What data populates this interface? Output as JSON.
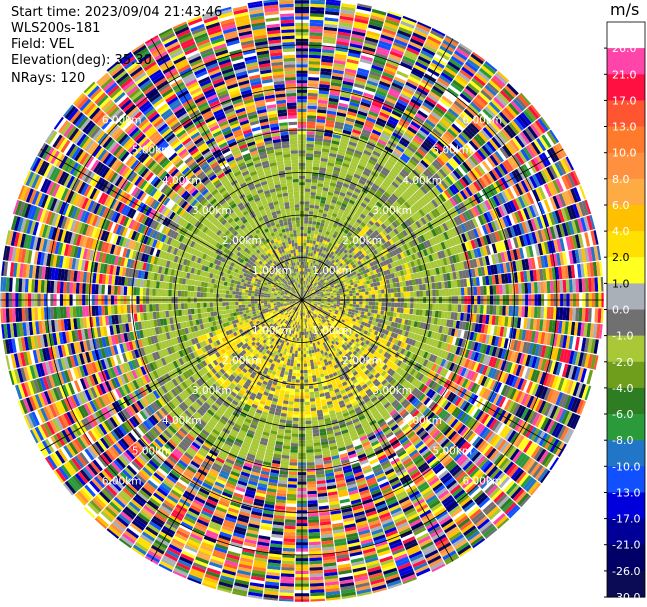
{
  "header": {
    "start_time": "Start time: 2023/09/04 21:43:46",
    "instrument": "WLS200s-181",
    "field": "Field: VEL",
    "elevation": "Elevation(deg): 35.30",
    "nrays": "NRays: 120"
  },
  "chart_data": {
    "type": "heatmap",
    "projection": "polar",
    "field": "VEL",
    "units": "m/s",
    "nrays": 120,
    "range_rings_km": [
      1,
      2,
      3,
      4,
      5,
      6
    ],
    "ring_labels": [
      "1.00km",
      "2.00km",
      "3.00km",
      "4.00km",
      "5.00km",
      "6.00km"
    ],
    "max_range_km": 7.1,
    "spoke_step_deg": 30,
    "colorbar": {
      "label": "m/s",
      "ticks": [
        "26.0",
        "21.0",
        "17.0",
        "13.0",
        "10.0",
        "8.0",
        "6.0",
        "4.0",
        "2.0",
        "1.0",
        "0.0",
        "-1.0",
        "-2.0",
        "-4.0",
        "-6.0",
        "-8.0",
        "-10.0",
        "-13.0",
        "-17.0",
        "-21.0",
        "-26.0",
        "-30.0"
      ],
      "colors": [
        "#ffffff",
        "#ff44aa",
        "#ff1040",
        "#ff5530",
        "#ff7a2a",
        "#ff9040",
        "#ffab44",
        "#ffc000",
        "#ffe000",
        "#ffff20",
        "#aab0b8",
        "#707070",
        "#a8c838",
        "#6e9e1c",
        "#2e7d22",
        "#2a9a3a",
        "#2176c8",
        "#1050ff",
        "#0000dd",
        "#000099",
        "#000066",
        "#0a0a55"
      ]
    }
  }
}
